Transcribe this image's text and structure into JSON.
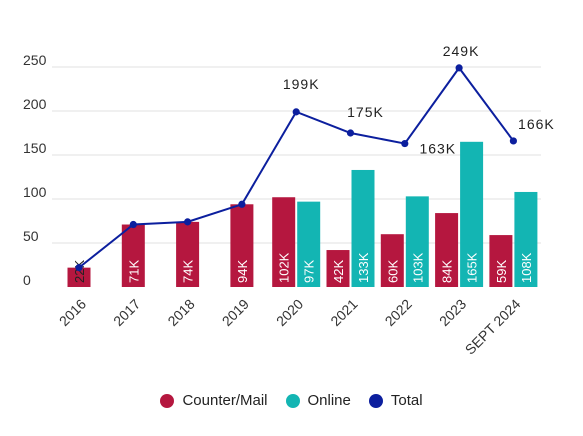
{
  "chart_data": {
    "type": "bar",
    "title": "",
    "xlabel": "",
    "ylabel": "",
    "categories": [
      "2016",
      "2017",
      "2018",
      "2019",
      "2020",
      "2021",
      "2022",
      "2023",
      "SEPT 2024"
    ],
    "yticks": [
      "0",
      "50",
      "100",
      "150",
      "200",
      "250"
    ],
    "ylim": [
      0,
      250
    ],
    "grid": true,
    "legend_position": "bottom",
    "series": [
      {
        "name": "Counter/Mail",
        "kind": "bar",
        "color": "#b5173f",
        "values": [
          22,
          71,
          74,
          94,
          102,
          42,
          60,
          84,
          59
        ],
        "labels": [
          "22K",
          "71K",
          "74K",
          "94K",
          "102K",
          "42K",
          "60K",
          "84K",
          "59K"
        ]
      },
      {
        "name": "Online",
        "kind": "bar",
        "color": "#13b5b3",
        "values": [
          null,
          null,
          null,
          null,
          97,
          133,
          103,
          165,
          108
        ],
        "labels": [
          "",
          "",
          "",
          "",
          "97K",
          "133K",
          "103K",
          "165K",
          "108K"
        ]
      },
      {
        "name": "Total",
        "kind": "line",
        "color": "#0c1f9e",
        "values": [
          22,
          71,
          74,
          94,
          199,
          175,
          163,
          249,
          166
        ],
        "labels": [
          "",
          "",
          "",
          "",
          "199K",
          "175K",
          "163K",
          "249K",
          "166K"
        ]
      }
    ]
  },
  "legend": {
    "items": [
      {
        "label": "Counter/Mail",
        "color": "#b5173f"
      },
      {
        "label": "Online",
        "color": "#13b5b3"
      },
      {
        "label": "Total",
        "color": "#0c1f9e"
      }
    ]
  }
}
